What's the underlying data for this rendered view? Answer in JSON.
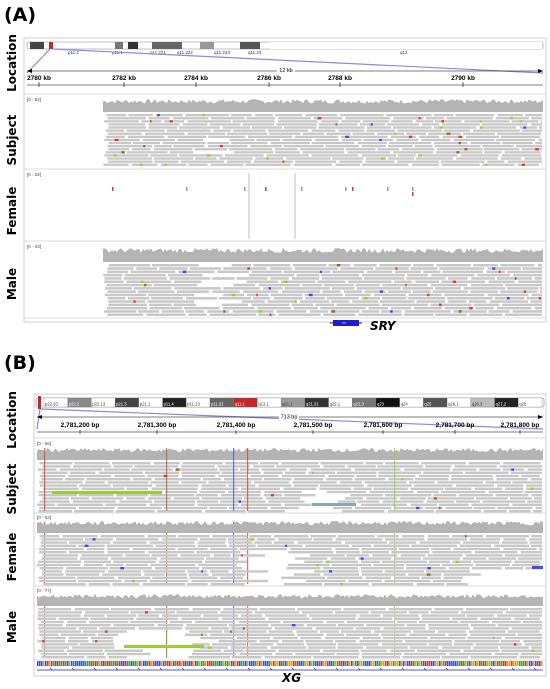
{
  "panelA": {
    "label": "(A)",
    "tracks": [
      "Location",
      "Subject",
      "Female",
      "Male"
    ],
    "cytobands": [
      "p11.2",
      "p11.1",
      "q11.221",
      "q11.222",
      "q11.223",
      "q11.23",
      "q12"
    ],
    "span": "12 kb",
    "ruler_ticks": [
      "2780 kb",
      "2782 kb",
      "2784 kb",
      "2786 kb",
      "2788 kb",
      "2790 kb"
    ],
    "ranges": [
      "[0 - 94]",
      "[0 - 22]",
      "[0 - 43]"
    ],
    "gene": "SRY"
  },
  "panelB": {
    "label": "(B)",
    "tracks": [
      "Location",
      "Subject",
      "Female",
      "Male"
    ],
    "cytobands": [
      "p22.33",
      "p22.2",
      "p22.13",
      "p21.3",
      "p21.1",
      "p11.4",
      "p11.23",
      "p11.22",
      "q11.1",
      "q13.1",
      "q21.1",
      "q21.31",
      "q22.1",
      "q22.3",
      "q23",
      "q24",
      "q25",
      "q26.1",
      "q26.3",
      "q27.2",
      "q28"
    ],
    "span": "713 bp",
    "ruler_ticks": [
      "2,781,200 bp",
      "2,781,300 bp",
      "2,781,400 bp",
      "2,781,500 bp",
      "2,781,600 bp",
      "2,781,700 bp",
      "2,781,800 bp"
    ],
    "ranges": [
      "[0 - 66]",
      "[0 - 53]",
      "[0 - 77]"
    ],
    "gene": "XG"
  },
  "colors": {
    "read": "#c8c8c8",
    "coverage": "#b4b4b4",
    "zoom_line": "#8b8bdd",
    "gene": "#1d1dc9",
    "mismatch_green": "#9acd32",
    "mismatch_red": "#d63a3a",
    "mismatch_blue": "#4a4ad8",
    "mismatch_brown": "#a0642a"
  }
}
